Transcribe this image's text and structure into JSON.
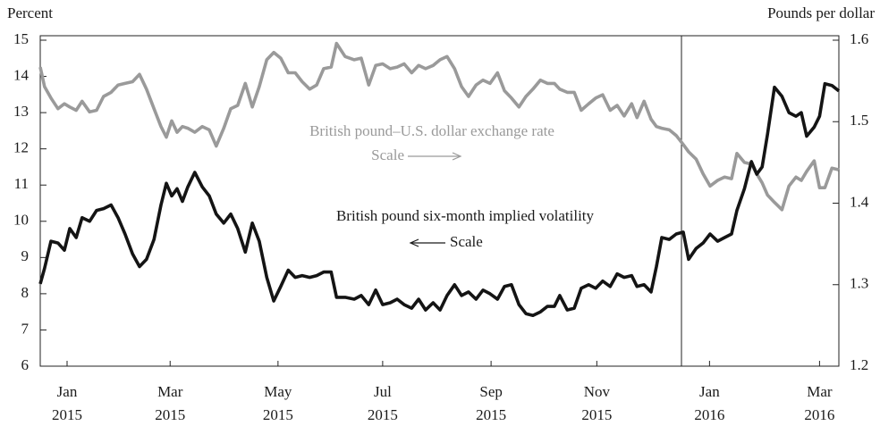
{
  "chart_data": {
    "type": "line",
    "y_label": "Percent",
    "y2_label": "Pounds per dollar",
    "annotations": [
      {
        "text": "British pound–U.S. dollar exchange rate",
        "series": 1
      },
      {
        "text": "Scale",
        "series": 1
      },
      {
        "text": "British pound six-month implied volatility",
        "series": 0
      },
      {
        "text": "Scale",
        "series": 0
      }
    ],
    "x": [
      0,
      0.08,
      0.2,
      0.33,
      0.45,
      0.55,
      0.67,
      0.78,
      0.92,
      1.05,
      1.18,
      1.32,
      1.45,
      1.58,
      1.72,
      1.85,
      1.98,
      2.12,
      2.25,
      2.35,
      2.45,
      2.55,
      2.65,
      2.75,
      2.88,
      3.02,
      3.15,
      3.28,
      3.42,
      3.55,
      3.68,
      3.82,
      3.95,
      4.08,
      4.22,
      4.35,
      4.48,
      4.62,
      4.75,
      4.88,
      5.02,
      5.15,
      5.28,
      5.42,
      5.52,
      5.68,
      5.85,
      5.98,
      6.12,
      6.25,
      6.38,
      6.52,
      6.65,
      6.78,
      6.92,
      7.05,
      7.18,
      7.32,
      7.45,
      7.58,
      7.72,
      7.85,
      7.98,
      8.12,
      8.25,
      8.38,
      8.52,
      8.65,
      8.78,
      8.92,
      9.05,
      9.18,
      9.32,
      9.45,
      9.58,
      9.68,
      9.82,
      9.95,
      10.08,
      10.22,
      10.35,
      10.48,
      10.62,
      10.75,
      10.88,
      11.02,
      11.12,
      11.25,
      11.38,
      11.48,
      11.58,
      11.72,
      11.85,
      11.98,
      12.08,
      12.22,
      12.35,
      12.48,
      12.62,
      12.75,
      12.88,
      12.98,
      13.12,
      13.25,
      13.35,
      13.45,
      13.55,
      13.68,
      13.82,
      13.95,
      14.08,
      14.18,
      14.28,
      14.42,
      14.52,
      14.62,
      14.75,
      14.88
    ],
    "series": [
      {
        "name": "British pound six-month implied volatility",
        "color": "#141414",
        "values": [
          8.27,
          8.7,
          9.45,
          9.4,
          9.2,
          9.8,
          9.55,
          10.1,
          10.0,
          10.3,
          10.35,
          10.45,
          10.1,
          9.65,
          9.1,
          8.75,
          8.95,
          9.5,
          10.45,
          11.05,
          10.7,
          10.9,
          10.55,
          10.95,
          11.35,
          10.95,
          10.7,
          10.2,
          9.95,
          10.2,
          9.8,
          9.15,
          9.95,
          9.45,
          8.45,
          7.8,
          8.2,
          8.65,
          8.45,
          8.5,
          8.45,
          8.5,
          8.6,
          8.6,
          7.9,
          7.9,
          7.85,
          7.95,
          7.7,
          8.1,
          7.7,
          7.75,
          7.85,
          7.7,
          7.6,
          7.85,
          7.55,
          7.75,
          7.55,
          7.95,
          8.25,
          7.95,
          8.05,
          7.85,
          8.1,
          8.0,
          7.85,
          8.2,
          8.25,
          7.7,
          7.45,
          7.4,
          7.5,
          7.65,
          7.65,
          7.95,
          7.55,
          7.6,
          8.15,
          8.25,
          8.15,
          8.35,
          8.2,
          8.55,
          8.45,
          8.5,
          8.2,
          8.25,
          8.05,
          8.75,
          9.55,
          9.5,
          9.65,
          9.7,
          8.95,
          9.25,
          9.4,
          9.65,
          9.45,
          9.55,
          9.65,
          10.3,
          10.9,
          11.65,
          11.3,
          11.5,
          12.4,
          13.7,
          13.45,
          13.0,
          12.9,
          13.0,
          12.35,
          12.6,
          12.9,
          13.8,
          13.75,
          13.6
        ]
      },
      {
        "name": "British pound–U.S. dollar exchange rate",
        "color": "#9a9a9a",
        "axis": "y2",
        "values": [
          1.567,
          1.543,
          1.529,
          1.516,
          1.522,
          1.518,
          1.514,
          1.525,
          1.512,
          1.514,
          1.531,
          1.536,
          1.545,
          1.547,
          1.549,
          1.558,
          1.54,
          1.516,
          1.494,
          1.481,
          1.501,
          1.487,
          1.494,
          1.492,
          1.487,
          1.494,
          1.49,
          1.47,
          1.492,
          1.516,
          1.52,
          1.547,
          1.518,
          1.543,
          1.576,
          1.585,
          1.578,
          1.56,
          1.56,
          1.549,
          1.54,
          1.545,
          1.565,
          1.567,
          1.596,
          1.58,
          1.576,
          1.578,
          1.545,
          1.569,
          1.571,
          1.565,
          1.567,
          1.571,
          1.56,
          1.569,
          1.565,
          1.569,
          1.576,
          1.58,
          1.565,
          1.543,
          1.531,
          1.545,
          1.551,
          1.547,
          1.56,
          1.538,
          1.529,
          1.518,
          1.531,
          1.54,
          1.551,
          1.547,
          1.547,
          1.54,
          1.536,
          1.536,
          1.514,
          1.522,
          1.529,
          1.533,
          1.514,
          1.52,
          1.507,
          1.522,
          1.505,
          1.525,
          1.503,
          1.494,
          1.492,
          1.49,
          1.483,
          1.472,
          1.463,
          1.454,
          1.436,
          1.421,
          1.428,
          1.432,
          1.43,
          1.461,
          1.45,
          1.448,
          1.436,
          1.425,
          1.41,
          1.401,
          1.392,
          1.421,
          1.432,
          1.428,
          1.439,
          1.452,
          1.419,
          1.419,
          1.443,
          1.441
        ]
      }
    ],
    "xlim": [
      0,
      14.88
    ],
    "xticks": [
      {
        "value": 0.5,
        "label": "Jan 2015"
      },
      {
        "value": 2.42,
        "label": "Mar 2015"
      },
      {
        "value": 4.43,
        "label": "May 2015"
      },
      {
        "value": 6.38,
        "label": "Jul 2015"
      },
      {
        "value": 8.4,
        "label": "Sep 2015"
      },
      {
        "value": 10.37,
        "label": "Nov 2015"
      },
      {
        "value": 12.47,
        "label": "Jan 2016"
      },
      {
        "value": 14.52,
        "label": "Mar 2016"
      }
    ],
    "ylim": [
      6,
      15
    ],
    "yticks": [
      6,
      7,
      8,
      9,
      10,
      11,
      12,
      13,
      14,
      15
    ],
    "y2lim": [
      1.2,
      1.6
    ],
    "y2ticks": [
      1.2,
      1.3,
      1.4,
      1.5,
      1.6
    ]
  }
}
